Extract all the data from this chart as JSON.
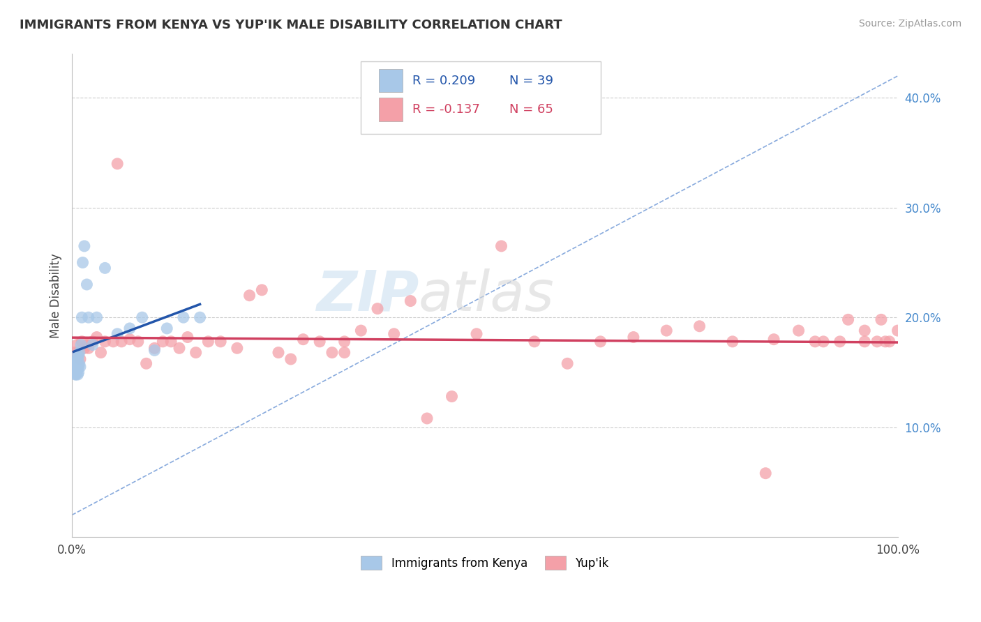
{
  "title": "IMMIGRANTS FROM KENYA VS YUP'IK MALE DISABILITY CORRELATION CHART",
  "source_text": "Source: ZipAtlas.com",
  "ylabel": "Male Disability",
  "xlim": [
    0.0,
    1.0
  ],
  "ylim": [
    0.0,
    0.44
  ],
  "ytick_labels": [
    "10.0%",
    "20.0%",
    "30.0%",
    "40.0%"
  ],
  "ytick_values": [
    0.1,
    0.2,
    0.3,
    0.4
  ],
  "legend_r1": "0.209",
  "legend_n1": "39",
  "legend_r2": "-0.137",
  "legend_n2": "65",
  "legend_label1": "Immigrants from Kenya",
  "legend_label2": "Yup'ik",
  "blue_color": "#a8c8e8",
  "pink_color": "#f4a0a8",
  "trendline_blue": "#2255aa",
  "trendline_pink": "#d04060",
  "grid_color": "#cccccc",
  "blue_x": [
    0.002,
    0.003,
    0.003,
    0.004,
    0.004,
    0.004,
    0.005,
    0.005,
    0.005,
    0.005,
    0.006,
    0.006,
    0.006,
    0.007,
    0.007,
    0.007,
    0.007,
    0.008,
    0.008,
    0.008,
    0.009,
    0.009,
    0.01,
    0.011,
    0.012,
    0.013,
    0.015,
    0.018,
    0.02,
    0.025,
    0.03,
    0.04,
    0.055,
    0.07,
    0.085,
    0.1,
    0.115,
    0.135,
    0.155
  ],
  "blue_y": [
    0.155,
    0.15,
    0.155,
    0.148,
    0.153,
    0.158,
    0.15,
    0.155,
    0.16,
    0.148,
    0.152,
    0.158,
    0.165,
    0.148,
    0.153,
    0.158,
    0.162,
    0.15,
    0.155,
    0.165,
    0.158,
    0.168,
    0.155,
    0.175,
    0.2,
    0.25,
    0.265,
    0.23,
    0.2,
    0.175,
    0.2,
    0.245,
    0.185,
    0.19,
    0.2,
    0.17,
    0.19,
    0.2,
    0.2
  ],
  "pink_x": [
    0.003,
    0.006,
    0.008,
    0.01,
    0.012,
    0.015,
    0.018,
    0.02,
    0.025,
    0.03,
    0.035,
    0.04,
    0.05,
    0.055,
    0.06,
    0.07,
    0.08,
    0.09,
    0.1,
    0.11,
    0.12,
    0.13,
    0.14,
    0.15,
    0.165,
    0.18,
    0.2,
    0.215,
    0.23,
    0.25,
    0.265,
    0.28,
    0.3,
    0.315,
    0.33,
    0.35,
    0.37,
    0.39,
    0.41,
    0.43,
    0.46,
    0.49,
    0.52,
    0.56,
    0.6,
    0.64,
    0.68,
    0.72,
    0.76,
    0.8,
    0.84,
    0.88,
    0.91,
    0.94,
    0.96,
    0.975,
    0.985,
    0.99,
    0.33,
    0.85,
    0.9,
    0.93,
    0.96,
    0.98,
    1.0
  ],
  "pink_y": [
    0.168,
    0.175,
    0.168,
    0.162,
    0.178,
    0.172,
    0.175,
    0.172,
    0.178,
    0.182,
    0.168,
    0.178,
    0.178,
    0.34,
    0.178,
    0.18,
    0.178,
    0.158,
    0.172,
    0.178,
    0.178,
    0.172,
    0.182,
    0.168,
    0.178,
    0.178,
    0.172,
    0.22,
    0.225,
    0.168,
    0.162,
    0.18,
    0.178,
    0.168,
    0.178,
    0.188,
    0.208,
    0.185,
    0.215,
    0.108,
    0.128,
    0.185,
    0.265,
    0.178,
    0.158,
    0.178,
    0.182,
    0.188,
    0.192,
    0.178,
    0.058,
    0.188,
    0.178,
    0.198,
    0.188,
    0.178,
    0.178,
    0.178,
    0.168,
    0.18,
    0.178,
    0.178,
    0.178,
    0.198,
    0.188
  ]
}
